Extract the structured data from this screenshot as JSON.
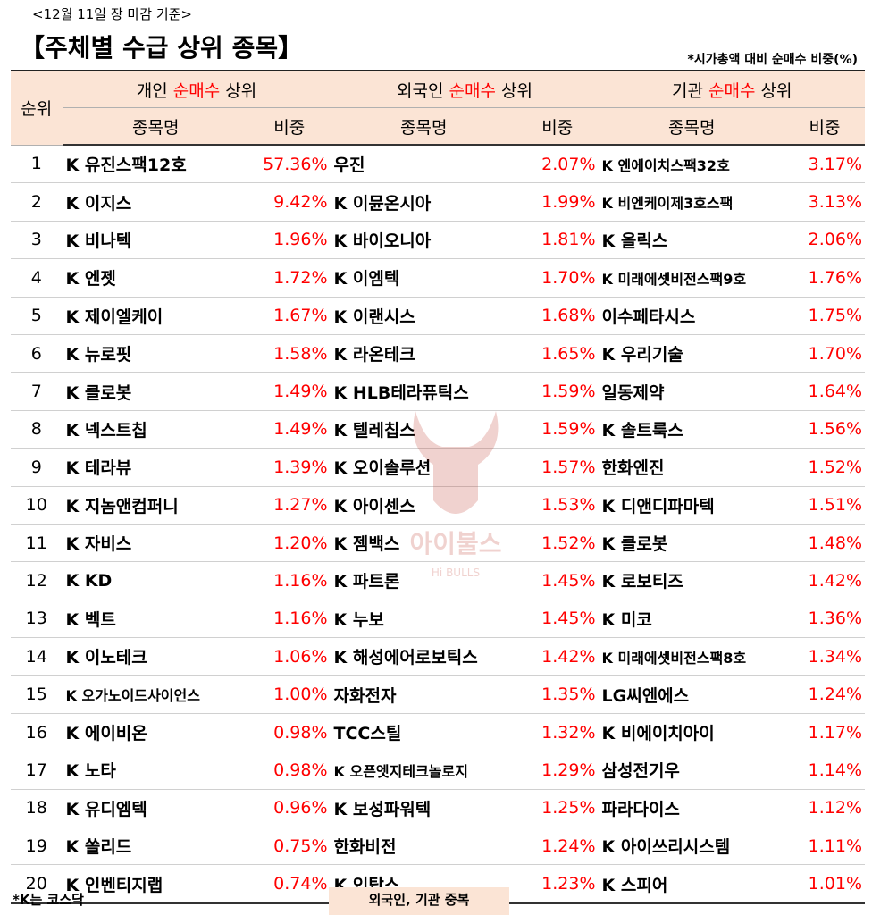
{
  "header": {
    "date": "<12월 11일 장 마감 기준>",
    "title": "【주체별 수급 상위 종목】",
    "note": "*시가총액 대비 순매수 비중(%)"
  },
  "table": {
    "rank_header": "순위",
    "groups": [
      {
        "prefix": "개인 ",
        "highlight": "순매수",
        "suffix": " 상위"
      },
      {
        "prefix": "외국인 ",
        "highlight": "순매수",
        "suffix": " 상위"
      },
      {
        "prefix": "기관 ",
        "highlight": "순매수",
        "suffix": " 상위"
      }
    ],
    "name_header": "종목명",
    "pct_header": "비중",
    "rows": [
      {
        "rank": "1",
        "ind_name": "K 유진스팩12호",
        "ind_pct": "57.36%",
        "for_name": " 우진",
        "for_pct": "2.07%",
        "inst_name": "K 엔에이치스팩32호",
        "inst_pct": "3.17%"
      },
      {
        "rank": "2",
        "ind_name": "K 이지스",
        "ind_pct": "9.42%",
        "for_name": "K 이뮨온시아",
        "for_pct": "1.99%",
        "inst_name": "K 비엔케이제3호스팩",
        "inst_pct": "3.13%"
      },
      {
        "rank": "3",
        "ind_name": "K 비나텍",
        "ind_pct": "1.96%",
        "for_name": "K 바이오니아",
        "for_pct": "1.81%",
        "inst_name": "K 올릭스",
        "inst_pct": "2.06%"
      },
      {
        "rank": "4",
        "ind_name": "K 엔젯",
        "ind_pct": "1.72%",
        "for_name": "K 이엠텍",
        "for_pct": "1.70%",
        "inst_name": "K 미래에셋비전스팩9호",
        "inst_pct": "1.76%"
      },
      {
        "rank": "5",
        "ind_name": "K 제이엘케이",
        "ind_pct": "1.67%",
        "for_name": "K 이랜시스",
        "for_pct": "1.68%",
        "inst_name": " 이수페타시스",
        "inst_pct": "1.75%"
      },
      {
        "rank": "6",
        "ind_name": "K 뉴로핏",
        "ind_pct": "1.58%",
        "for_name": "K 라온테크",
        "for_pct": "1.65%",
        "inst_name": "K 우리기술",
        "inst_pct": "1.70%"
      },
      {
        "rank": "7",
        "ind_name": "K 클로봇",
        "ind_pct": "1.49%",
        "for_name": "K HLB테라퓨틱스",
        "for_pct": "1.59%",
        "inst_name": " 일동제약",
        "inst_pct": "1.64%"
      },
      {
        "rank": "8",
        "ind_name": "K 넥스트칩",
        "ind_pct": "1.49%",
        "for_name": "K 텔레칩스",
        "for_pct": "1.59%",
        "inst_name": "K 솔트룩스",
        "inst_pct": "1.56%"
      },
      {
        "rank": "9",
        "ind_name": "K 테라뷰",
        "ind_pct": "1.39%",
        "for_name": "K 오이솔루션",
        "for_pct": "1.57%",
        "inst_name": " 한화엔진",
        "inst_pct": "1.52%"
      },
      {
        "rank": "10",
        "ind_name": "K 지놈앤컴퍼니",
        "ind_pct": "1.27%",
        "for_name": "K 아이센스",
        "for_pct": "1.53%",
        "inst_name": "K 디앤디파마텍",
        "inst_pct": "1.51%"
      },
      {
        "rank": "11",
        "ind_name": "K 자비스",
        "ind_pct": "1.20%",
        "for_name": "K 젬백스",
        "for_pct": "1.52%",
        "inst_name": "K 클로봇",
        "inst_pct": "1.48%"
      },
      {
        "rank": "12",
        "ind_name": "K KD",
        "ind_pct": "1.16%",
        "for_name": "K 파트론",
        "for_pct": "1.45%",
        "inst_name": "K 로보티즈",
        "inst_pct": "1.42%"
      },
      {
        "rank": "13",
        "ind_name": "K 벡트",
        "ind_pct": "1.16%",
        "for_name": "K 누보",
        "for_pct": "1.45%",
        "inst_name": "K 미코",
        "inst_pct": "1.36%"
      },
      {
        "rank": "14",
        "ind_name": "K 이노테크",
        "ind_pct": "1.06%",
        "for_name": "K 해성에어로보틱스",
        "for_pct": "1.42%",
        "inst_name": "K 미래에셋비전스팩8호",
        "inst_pct": "1.34%"
      },
      {
        "rank": "15",
        "ind_name": "K 오가노이드사이언스",
        "ind_pct": "1.00%",
        "for_name": " 자화전자",
        "for_pct": "1.35%",
        "inst_name": " LG씨엔에스",
        "inst_pct": "1.24%"
      },
      {
        "rank": "16",
        "ind_name": "K 에이비온",
        "ind_pct": "0.98%",
        "for_name": " TCC스틸",
        "for_pct": "1.32%",
        "inst_name": "K 비에이치아이",
        "inst_pct": "1.17%"
      },
      {
        "rank": "17",
        "ind_name": "K 노타",
        "ind_pct": "0.98%",
        "for_name": "K 오픈엣지테크놀로지",
        "for_pct": "1.29%",
        "inst_name": " 삼성전기우",
        "inst_pct": "1.14%"
      },
      {
        "rank": "18",
        "ind_name": "K 유디엠텍",
        "ind_pct": "0.96%",
        "for_name": "K 보성파워텍",
        "for_pct": "1.25%",
        "inst_name": " 파라다이스",
        "inst_pct": "1.12%"
      },
      {
        "rank": "19",
        "ind_name": "K 쏠리드",
        "ind_pct": "0.75%",
        "for_name": " 한화비전",
        "for_pct": "1.24%",
        "inst_name": "K 아이쓰리시스템",
        "inst_pct": "1.11%"
      },
      {
        "rank": "20",
        "ind_name": "K 인벤티지랩",
        "ind_pct": "0.74%",
        "for_name": "K 인탑스",
        "for_pct": "1.23%",
        "inst_name": "K 스피어",
        "inst_pct": "1.01%"
      }
    ]
  },
  "footer": {
    "left_note": "*K는 코스닥",
    "overlap_note": "외국인, 기관 중복"
  },
  "watermark": {
    "text": "아이불스",
    "sub": "Hi BULLS"
  },
  "colors": {
    "header_bg": "#fbe4d5",
    "highlight": "#ff0000",
    "overlap_bg": "#fbe4d5"
  }
}
